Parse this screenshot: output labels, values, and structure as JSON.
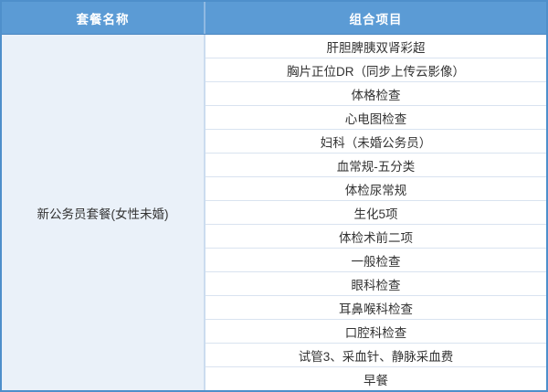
{
  "table": {
    "columns": [
      {
        "label": "套餐名称"
      },
      {
        "label": "组合项目"
      }
    ],
    "package_name": "新公务员套餐(女性未婚)",
    "items": [
      "肝胆脾胰双肾彩超",
      "胸片正位DR（同步上传云影像）",
      "体格检查",
      "心电图检查",
      "妇科（未婚公务员）",
      "血常规-五分类",
      "体检尿常规",
      "生化5项",
      "体检术前二项",
      "一般检查",
      "眼科检查",
      "耳鼻喉科检查",
      "口腔科检查",
      "试管3、采血针、静脉采血费",
      "早餐"
    ]
  },
  "colors": {
    "header_bg": "#5B9BD5",
    "header_text": "#FFFFFF",
    "package_cell_bg": "#EAF1F9",
    "row_divider": "#D9E3F0",
    "outer_border": "#4E8FCB",
    "body_text": "#333333"
  }
}
